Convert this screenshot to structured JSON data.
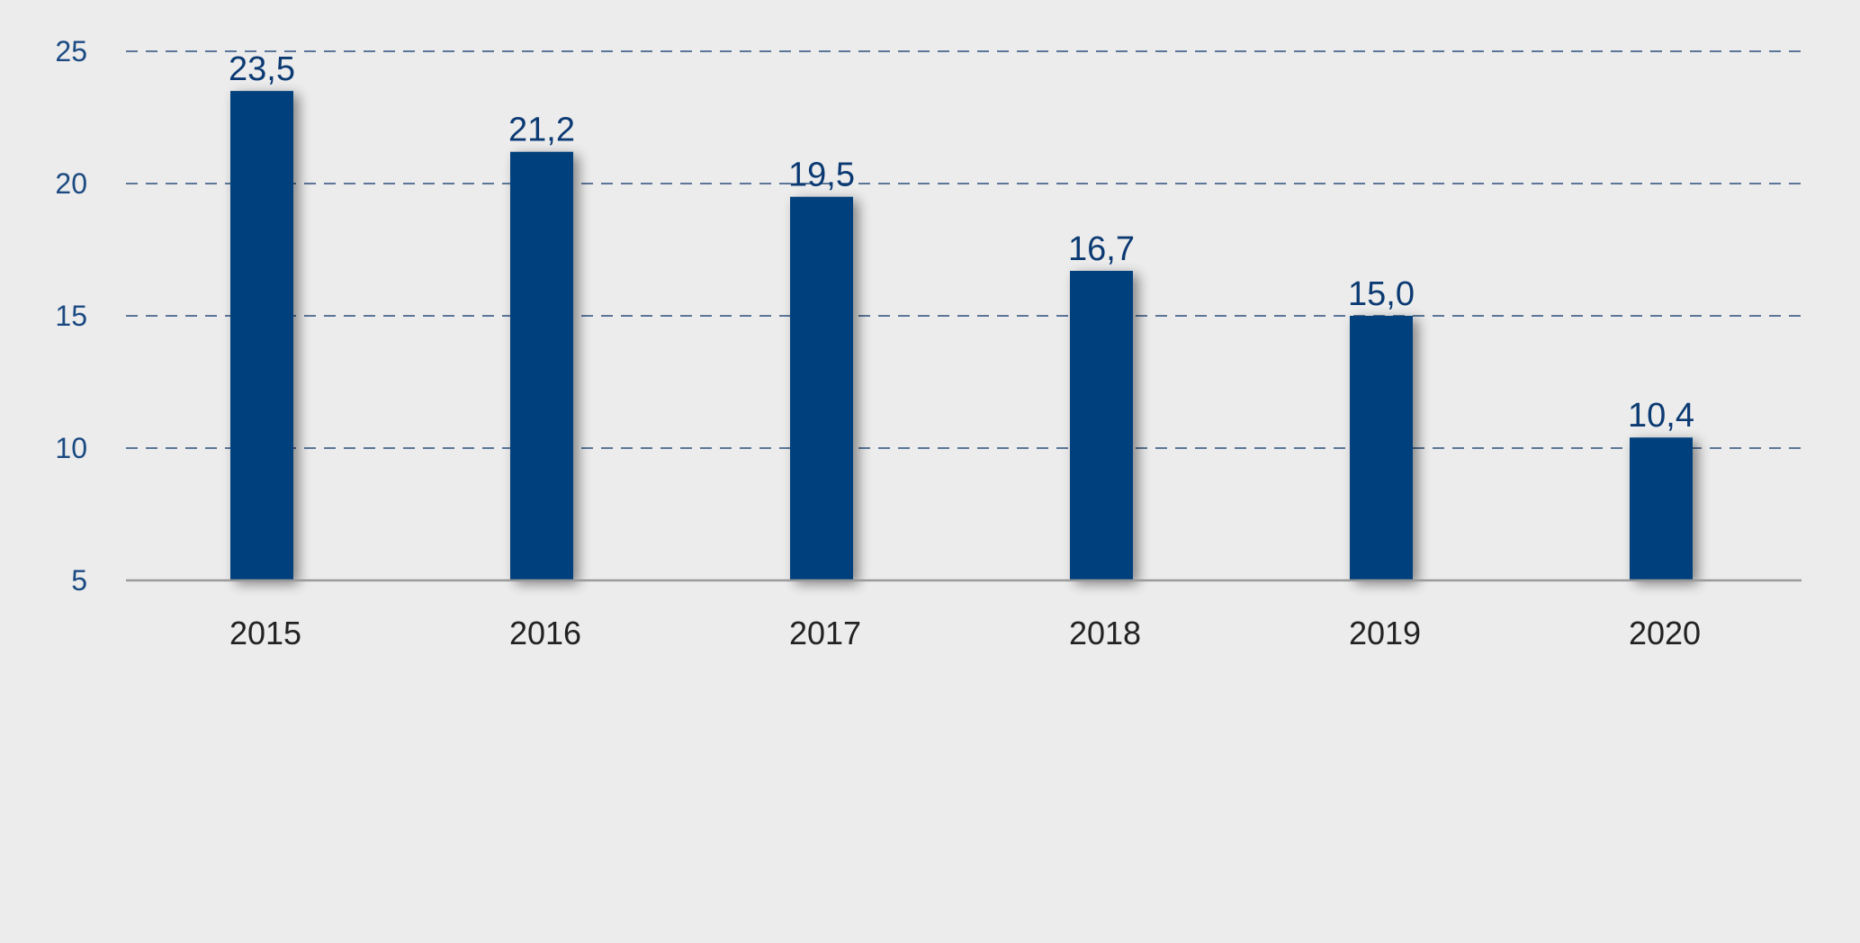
{
  "chart_data": {
    "type": "bar",
    "categories": [
      "2015",
      "2016",
      "2017",
      "2018",
      "2019",
      "2020"
    ],
    "values": [
      23.5,
      21.2,
      19.5,
      16.7,
      15.0,
      10.4
    ],
    "data_labels": [
      "23,5",
      "21,2",
      "19,5",
      "16,7",
      "15,0",
      "10,4"
    ],
    "ylim": [
      5,
      25
    ],
    "yticks": [
      5,
      10,
      15,
      20,
      25
    ],
    "ytick_labels": [
      "5",
      "10",
      "15",
      "20",
      "25"
    ],
    "grid": "horizontal dashed",
    "title": "",
    "xlabel": "",
    "ylabel": ""
  },
  "colors": {
    "background": "#ececec",
    "bar": "#003f7d",
    "data_label": "#0b3a73",
    "y_tick_label": "#1b4a82",
    "x_tick_label": "#222222",
    "grid": "#2b4f7c",
    "axis": "#9a9a9a"
  }
}
